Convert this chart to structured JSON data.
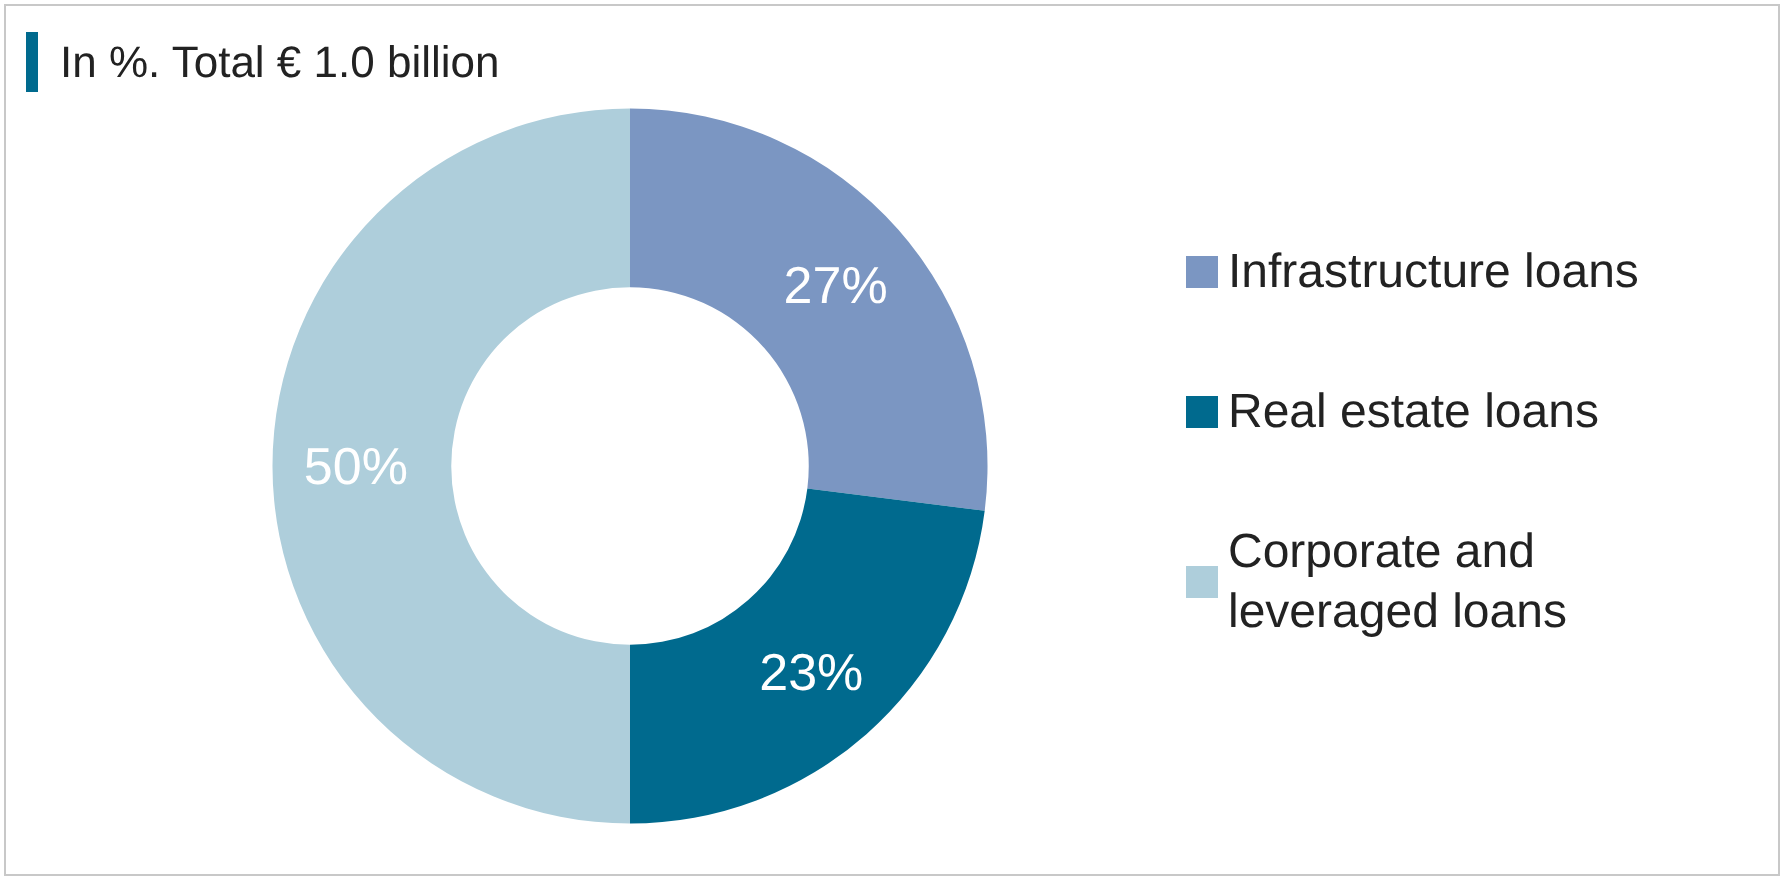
{
  "chart_data": {
    "type": "donut",
    "title": "In %. Total € 1.0 billion",
    "categories": [
      "Infrastructure loans",
      "Real estate loans",
      "Corporate and leveraged loans"
    ],
    "values": [
      27,
      23,
      50
    ],
    "colors": [
      "#7b96c2",
      "#006a8e",
      "#aecedb"
    ],
    "value_labels": [
      "27%",
      "23%",
      "50%"
    ],
    "legend": "right"
  }
}
